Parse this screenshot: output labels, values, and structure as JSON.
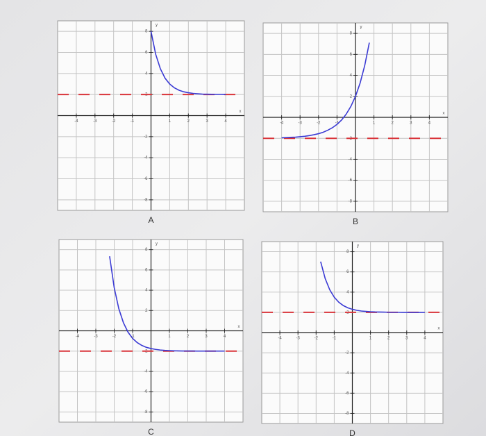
{
  "chart_data": [
    {
      "type": "line",
      "label": "A",
      "x_label": "x",
      "y_label": "y",
      "x": [
        -4,
        -3.75,
        -3.5,
        -3.25,
        -3,
        -2.75,
        -2.5,
        -2.25,
        -2,
        -1.75,
        -1.5,
        -1.25,
        -1,
        -0.75,
        -0.5,
        -0.25,
        0,
        0.25,
        0.5,
        0.75,
        1,
        1.25,
        1.5,
        1.75,
        2,
        2.25,
        2.5,
        2.75,
        3,
        3.25,
        3.5,
        3.75,
        4
      ],
      "series": [
        {
          "color": "#3b3bd4",
          "values": [
            null,
            null,
            null,
            null,
            null,
            null,
            null,
            null,
            null,
            null,
            null,
            null,
            null,
            null,
            null,
            null,
            8,
            5.83,
            4.45,
            3.56,
            3,
            2.64,
            2.41,
            2.26,
            2.17,
            2.11,
            2.07,
            2.04,
            2.03,
            2.02,
            2.01,
            2.01,
            2
          ]
        }
      ],
      "asymptote": 2,
      "asymptote_color": "#d9343a",
      "xlim": [
        -5,
        5
      ],
      "ylim": [
        -9,
        9
      ],
      "xticks": [
        -4,
        -3,
        -2,
        -1,
        1,
        2,
        3,
        4
      ],
      "yticks": [
        -8,
        -6,
        -4,
        -2,
        2,
        4,
        6,
        8
      ],
      "grid": true
    },
    {
      "type": "line",
      "label": "B",
      "x_label": "x",
      "y_label": "y",
      "x": [
        -4,
        -3.75,
        -3.5,
        -3.25,
        -3,
        -2.75,
        -2.5,
        -2.25,
        -2,
        -1.75,
        -1.5,
        -1.25,
        -1,
        -0.75,
        -0.5,
        -0.25,
        0,
        0.25,
        0.5,
        0.75,
        1,
        1.25,
        1.5,
        1.75,
        2,
        2.25,
        2.5,
        2.75,
        3,
        3.25,
        3.5,
        3.75,
        4
      ],
      "series": [
        {
          "color": "#3b3bd4",
          "values": [
            -1.95,
            -1.93,
            -1.91,
            -1.89,
            -1.85,
            -1.81,
            -1.74,
            -1.66,
            -1.56,
            -1.42,
            -1.23,
            -0.99,
            -0.67,
            -0.25,
            0.31,
            1.04,
            2,
            3.26,
            4.93,
            7.12,
            null,
            null,
            null,
            null,
            null,
            null,
            null,
            null,
            null,
            null,
            null,
            null,
            null
          ]
        }
      ],
      "asymptote": -2,
      "asymptote_color": "#d9343a",
      "xlim": [
        -5,
        5
      ],
      "ylim": [
        -9,
        9
      ],
      "xticks": [
        -4,
        -3,
        -2,
        -1,
        1,
        2,
        3,
        4
      ],
      "yticks": [
        -8,
        -6,
        -4,
        -2,
        2,
        4,
        6,
        8
      ],
      "grid": true
    },
    {
      "type": "line",
      "label": "C",
      "x_label": "x",
      "y_label": "y",
      "x": [
        -4,
        -3.75,
        -3.5,
        -3.25,
        -3,
        -2.75,
        -2.5,
        -2.25,
        -2,
        -1.75,
        -1.5,
        -1.25,
        -1,
        -0.75,
        -0.5,
        -0.25,
        0,
        0.25,
        0.5,
        0.75,
        1,
        1.25,
        1.5,
        1.75,
        2,
        2.25,
        2.5,
        2.75,
        3,
        3.25,
        3.5,
        3.75,
        4
      ],
      "series": [
        {
          "color": "#3b3bd4",
          "values": [
            null,
            null,
            null,
            null,
            null,
            null,
            null,
            7.35,
            4.25,
            2.18,
            0.8,
            -0.13,
            -0.75,
            -1.16,
            -1.44,
            -1.63,
            -1.75,
            -1.83,
            -1.89,
            -1.93,
            -1.95,
            -1.97,
            -1.98,
            -1.99,
            -1.99,
            -1.99,
            -2,
            -2,
            -2,
            -2,
            -2,
            -2,
            -2
          ]
        }
      ],
      "asymptote": -2,
      "asymptote_color": "#d9343a",
      "xlim": [
        -5,
        5
      ],
      "ylim": [
        -9,
        9
      ],
      "xticks": [
        -4,
        -3,
        -2,
        -1,
        1,
        2,
        3,
        4
      ],
      "yticks": [
        -8,
        -6,
        -4,
        -2,
        2,
        4,
        6,
        8
      ],
      "grid": true
    },
    {
      "type": "line",
      "label": "D",
      "x_label": "x",
      "y_label": "y",
      "x": [
        -4,
        -3.75,
        -3.5,
        -3.25,
        -3,
        -2.75,
        -2.5,
        -2.25,
        -2,
        -1.75,
        -1.5,
        -1.25,
        -1,
        -0.75,
        -0.5,
        -0.25,
        0,
        0.25,
        0.5,
        0.75,
        1,
        1.25,
        1.5,
        1.75,
        2,
        2.25,
        2.5,
        2.75,
        3,
        3.25,
        3.5,
        3.75,
        4
      ],
      "series": [
        {
          "color": "#3b3bd4",
          "values": [
            null,
            null,
            null,
            null,
            null,
            null,
            null,
            null,
            null,
            7.02,
            5.35,
            4.24,
            3.5,
            3,
            2.67,
            2.45,
            2.3,
            2.2,
            2.13,
            2.09,
            2.06,
            2.04,
            2.03,
            2.02,
            2.01,
            2.01,
            2.01,
            2,
            2,
            2,
            2,
            2,
            2
          ]
        }
      ],
      "asymptote": 2,
      "asymptote_color": "#d9343a",
      "xlim": [
        -5,
        5
      ],
      "ylim": [
        -9,
        9
      ],
      "xticks": [
        -4,
        -3,
        -2,
        -1,
        1,
        2,
        3,
        4
      ],
      "yticks": [
        -8,
        -6,
        -4,
        -2,
        2,
        4,
        6,
        8
      ],
      "grid": true
    }
  ]
}
